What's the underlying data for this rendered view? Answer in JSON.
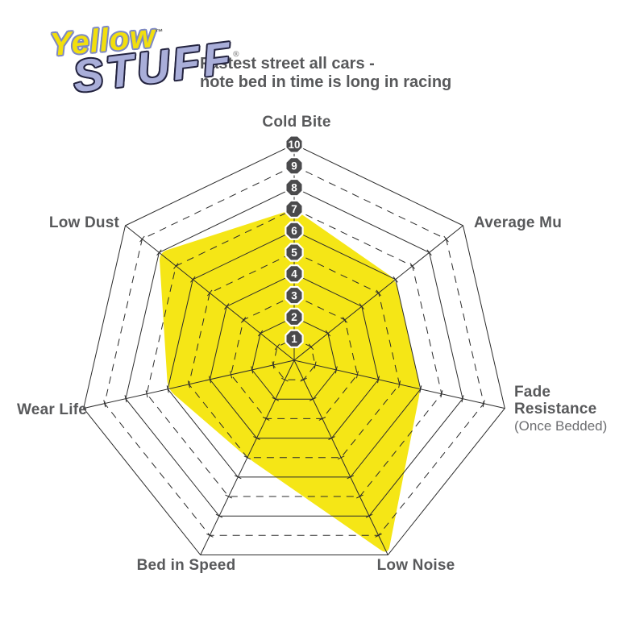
{
  "logo": {
    "word1": "Yellow",
    "word1_mark": "™",
    "word2": "STUFF",
    "word2_mark": "®"
  },
  "subtitle": {
    "line1": "Fastest street all cars -",
    "line2": "note bed in time is long in racing"
  },
  "chart_data": {
    "type": "radar",
    "axes": [
      {
        "label": "Cold Bite",
        "value": 7
      },
      {
        "label": "Average Mu",
        "value": 6
      },
      {
        "label": "Fade Resistance",
        "sublabel": "(Once Bedded)",
        "value": 6
      },
      {
        "label": "Low Noise",
        "value": 10
      },
      {
        "label": "Bed in Speed",
        "value": 5
      },
      {
        "label": "Wear Life",
        "value": 6
      },
      {
        "label": "Low Dust",
        "value": 8
      }
    ],
    "scale": {
      "min": 1,
      "max": 10,
      "badge_labels": [
        "1",
        "2",
        "3",
        "4",
        "5",
        "6",
        "7",
        "8",
        "9",
        "10"
      ]
    },
    "grid": {
      "rings": 10,
      "ring_style": "even rings solid, odd rings dashed",
      "axis_ticks": true
    },
    "legend_position": "none"
  },
  "colors": {
    "fill": "#f5e616",
    "grid_line": "#2b2b2b",
    "badge_bg": "#4a4a4c",
    "badge_text": "#ffffff",
    "label_text": "#58595b",
    "sublabel_text": "#6d6e71",
    "subtitle_text": "#58595b",
    "logo_yellow": "#f2df0d",
    "logo_yellow_outline": "#7d88c4",
    "logo_blue": "#a9aed9",
    "logo_blue_outline": "#23233f"
  }
}
